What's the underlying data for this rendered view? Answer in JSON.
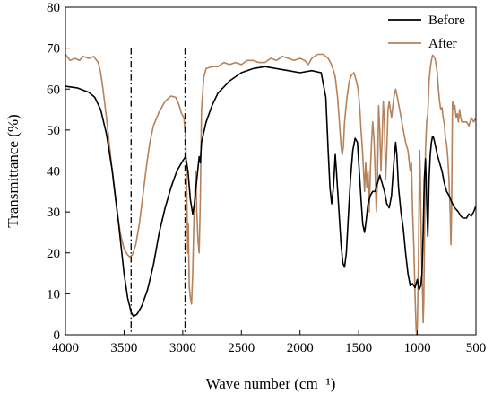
{
  "chart_data": {
    "type": "line",
    "title": "",
    "xlabel": "Wave number (cm⁻¹)",
    "ylabel": "Transmittance (%)",
    "xlim": [
      4000,
      500
    ],
    "ylim": [
      0,
      80
    ],
    "x_ticks": [
      4000,
      3500,
      3000,
      2500,
      2000,
      1500,
      1000,
      500
    ],
    "y_ticks": [
      0,
      10,
      20,
      30,
      40,
      50,
      60,
      70,
      80
    ],
    "legend_position": "top-right",
    "grid": false,
    "reference_lines_x": [
      3440,
      2980
    ],
    "series": [
      {
        "name": "Before",
        "color": "#000000",
        "points": [
          [
            4000,
            60.7
          ],
          [
            3900,
            60.3
          ],
          [
            3800,
            59.2
          ],
          [
            3750,
            58
          ],
          [
            3700,
            55
          ],
          [
            3650,
            49
          ],
          [
            3600,
            40
          ],
          [
            3550,
            28
          ],
          [
            3500,
            15
          ],
          [
            3470,
            9
          ],
          [
            3440,
            5.5
          ],
          [
            3420,
            4.5
          ],
          [
            3390,
            5
          ],
          [
            3350,
            7
          ],
          [
            3300,
            11
          ],
          [
            3250,
            17
          ],
          [
            3200,
            25
          ],
          [
            3150,
            31
          ],
          [
            3100,
            36
          ],
          [
            3050,
            40
          ],
          [
            3000,
            42.5
          ],
          [
            2975,
            43.5
          ],
          [
            2955,
            40
          ],
          [
            2935,
            33
          ],
          [
            2915,
            29.5
          ],
          [
            2900,
            32
          ],
          [
            2880,
            38
          ],
          [
            2860,
            43.5
          ],
          [
            2850,
            42
          ],
          [
            2840,
            47
          ],
          [
            2800,
            52
          ],
          [
            2750,
            56
          ],
          [
            2700,
            59
          ],
          [
            2600,
            62
          ],
          [
            2500,
            64
          ],
          [
            2400,
            65
          ],
          [
            2300,
            65.5
          ],
          [
            2200,
            65
          ],
          [
            2100,
            64.5
          ],
          [
            2000,
            64
          ],
          [
            1900,
            64.5
          ],
          [
            1820,
            64
          ],
          [
            1780,
            58
          ],
          [
            1760,
            45
          ],
          [
            1745,
            36
          ],
          [
            1730,
            32
          ],
          [
            1715,
            36
          ],
          [
            1700,
            44
          ],
          [
            1690,
            40
          ],
          [
            1670,
            31
          ],
          [
            1650,
            22
          ],
          [
            1635,
            17.5
          ],
          [
            1620,
            16.5
          ],
          [
            1605,
            20
          ],
          [
            1590,
            28
          ],
          [
            1570,
            38
          ],
          [
            1550,
            45
          ],
          [
            1530,
            48
          ],
          [
            1510,
            47
          ],
          [
            1495,
            40
          ],
          [
            1480,
            33
          ],
          [
            1465,
            27
          ],
          [
            1450,
            25
          ],
          [
            1440,
            27
          ],
          [
            1420,
            32
          ],
          [
            1400,
            34
          ],
          [
            1380,
            35
          ],
          [
            1360,
            35
          ],
          [
            1340,
            37
          ],
          [
            1320,
            39
          ],
          [
            1300,
            37
          ],
          [
            1280,
            35
          ],
          [
            1260,
            32
          ],
          [
            1240,
            31
          ],
          [
            1220,
            34
          ],
          [
            1205,
            40
          ],
          [
            1195,
            44
          ],
          [
            1185,
            47
          ],
          [
            1175,
            44
          ],
          [
            1160,
            36
          ],
          [
            1140,
            30
          ],
          [
            1120,
            26
          ],
          [
            1100,
            20
          ],
          [
            1080,
            15
          ],
          [
            1060,
            12
          ],
          [
            1040,
            12.5
          ],
          [
            1020,
            11.5
          ],
          [
            1000,
            13.5
          ],
          [
            985,
            11
          ],
          [
            970,
            12
          ],
          [
            960,
            15
          ],
          [
            950,
            25
          ],
          [
            940,
            38
          ],
          [
            930,
            43
          ],
          [
            920,
            33
          ],
          [
            910,
            24
          ],
          [
            900,
            38
          ],
          [
            890,
            44
          ],
          [
            880,
            47
          ],
          [
            870,
            48.5
          ],
          [
            860,
            48
          ],
          [
            845,
            46
          ],
          [
            830,
            44
          ],
          [
            810,
            42
          ],
          [
            790,
            40
          ],
          [
            770,
            37
          ],
          [
            750,
            35
          ],
          [
            730,
            34
          ],
          [
            700,
            32
          ],
          [
            680,
            31
          ],
          [
            650,
            30
          ],
          [
            630,
            29
          ],
          [
            610,
            28.5
          ],
          [
            580,
            28.5
          ],
          [
            560,
            29.5
          ],
          [
            540,
            29
          ],
          [
            520,
            30
          ],
          [
            500,
            31.5
          ]
        ]
      },
      {
        "name": "After",
        "color": "#B5825B",
        "points": [
          [
            4000,
            68.5
          ],
          [
            3960,
            67
          ],
          [
            3920,
            67.5
          ],
          [
            3880,
            67
          ],
          [
            3850,
            68
          ],
          [
            3800,
            67.5
          ],
          [
            3760,
            68
          ],
          [
            3720,
            66.5
          ],
          [
            3700,
            64
          ],
          [
            3680,
            60
          ],
          [
            3650,
            53
          ],
          [
            3620,
            45
          ],
          [
            3590,
            37
          ],
          [
            3560,
            30
          ],
          [
            3530,
            24.5
          ],
          [
            3500,
            21
          ],
          [
            3470,
            19.5
          ],
          [
            3450,
            19
          ],
          [
            3430,
            19.5
          ],
          [
            3400,
            22
          ],
          [
            3370,
            27
          ],
          [
            3340,
            34
          ],
          [
            3310,
            41
          ],
          [
            3280,
            47
          ],
          [
            3250,
            51
          ],
          [
            3200,
            54.5
          ],
          [
            3150,
            57
          ],
          [
            3100,
            58.3
          ],
          [
            3060,
            58
          ],
          [
            3030,
            56
          ],
          [
            3010,
            54
          ],
          [
            2990,
            53
          ],
          [
            2975,
            48
          ],
          [
            2965,
            35
          ],
          [
            2958,
            20
          ],
          [
            2952,
            27
          ],
          [
            2945,
            12
          ],
          [
            2935,
            9
          ],
          [
            2925,
            7.5
          ],
          [
            2915,
            15
          ],
          [
            2905,
            28
          ],
          [
            2890,
            40
          ],
          [
            2880,
            30
          ],
          [
            2870,
            23
          ],
          [
            2860,
            20
          ],
          [
            2850,
            33
          ],
          [
            2840,
            55
          ],
          [
            2820,
            63
          ],
          [
            2800,
            65
          ],
          [
            2750,
            65.5
          ],
          [
            2700,
            65.5
          ],
          [
            2650,
            66.5
          ],
          [
            2600,
            66
          ],
          [
            2550,
            66.5
          ],
          [
            2500,
            66
          ],
          [
            2450,
            67
          ],
          [
            2400,
            67
          ],
          [
            2350,
            66.5
          ],
          [
            2300,
            66.5
          ],
          [
            2250,
            67.5
          ],
          [
            2200,
            67
          ],
          [
            2150,
            68
          ],
          [
            2100,
            67.5
          ],
          [
            2050,
            67
          ],
          [
            2000,
            67.5
          ],
          [
            1960,
            67
          ],
          [
            1930,
            66
          ],
          [
            1900,
            67.5
          ],
          [
            1850,
            68.5
          ],
          [
            1800,
            68.5
          ],
          [
            1780,
            68
          ],
          [
            1760,
            67.5
          ],
          [
            1740,
            66.5
          ],
          [
            1720,
            65
          ],
          [
            1700,
            63
          ],
          [
            1680,
            58
          ],
          [
            1665,
            52
          ],
          [
            1650,
            46
          ],
          [
            1640,
            44
          ],
          [
            1630,
            46
          ],
          [
            1620,
            52
          ],
          [
            1600,
            58
          ],
          [
            1580,
            62
          ],
          [
            1560,
            63.5
          ],
          [
            1540,
            64
          ],
          [
            1520,
            62
          ],
          [
            1505,
            60
          ],
          [
            1490,
            55
          ],
          [
            1480,
            50
          ],
          [
            1470,
            46
          ],
          [
            1460,
            41
          ],
          [
            1450,
            35
          ],
          [
            1440,
            42
          ],
          [
            1430,
            36
          ],
          [
            1420,
            40
          ],
          [
            1410,
            30
          ],
          [
            1400,
            40
          ],
          [
            1390,
            47
          ],
          [
            1380,
            52
          ],
          [
            1370,
            48
          ],
          [
            1360,
            40
          ],
          [
            1350,
            30
          ],
          [
            1340,
            38
          ],
          [
            1330,
            56
          ],
          [
            1320,
            50
          ],
          [
            1310,
            40
          ],
          [
            1300,
            48
          ],
          [
            1290,
            57
          ],
          [
            1280,
            52
          ],
          [
            1270,
            38
          ],
          [
            1260,
            45
          ],
          [
            1250,
            55
          ],
          [
            1240,
            57
          ],
          [
            1220,
            53
          ],
          [
            1200,
            58
          ],
          [
            1185,
            60
          ],
          [
            1170,
            58
          ],
          [
            1150,
            55
          ],
          [
            1120,
            50
          ],
          [
            1100,
            47
          ],
          [
            1080,
            45
          ],
          [
            1060,
            40
          ],
          [
            1050,
            42
          ],
          [
            1040,
            30
          ],
          [
            1030,
            22
          ],
          [
            1020,
            10
          ],
          [
            1010,
            1
          ],
          [
            1005,
            0
          ],
          [
            1000,
            2
          ],
          [
            990,
            18
          ],
          [
            985,
            32
          ],
          [
            980,
            45
          ],
          [
            975,
            40
          ],
          [
            968,
            25
          ],
          [
            960,
            15
          ],
          [
            955,
            10
          ],
          [
            950,
            3
          ],
          [
            945,
            8
          ],
          [
            940,
            20
          ],
          [
            930,
            45
          ],
          [
            920,
            52
          ],
          [
            910,
            54
          ],
          [
            900,
            62
          ],
          [
            890,
            65
          ],
          [
            880,
            67
          ],
          [
            870,
            68.3
          ],
          [
            860,
            68
          ],
          [
            850,
            67.5
          ],
          [
            840,
            66
          ],
          [
            830,
            64
          ],
          [
            820,
            60
          ],
          [
            810,
            57
          ],
          [
            800,
            55
          ],
          [
            790,
            55.5
          ],
          [
            780,
            53
          ],
          [
            770,
            51.5
          ],
          [
            760,
            48
          ],
          [
            750,
            46.5
          ],
          [
            740,
            43
          ],
          [
            730,
            38
          ],
          [
            720,
            30
          ],
          [
            713,
            22
          ],
          [
            708,
            30
          ],
          [
            700,
            57
          ],
          [
            690,
            55
          ],
          [
            680,
            56
          ],
          [
            670,
            53
          ],
          [
            660,
            54
          ],
          [
            650,
            52
          ],
          [
            640,
            55
          ],
          [
            630,
            53
          ],
          [
            620,
            52
          ],
          [
            600,
            52
          ],
          [
            580,
            52
          ],
          [
            560,
            51
          ],
          [
            540,
            53
          ],
          [
            520,
            52
          ],
          [
            500,
            53
          ]
        ]
      }
    ]
  }
}
